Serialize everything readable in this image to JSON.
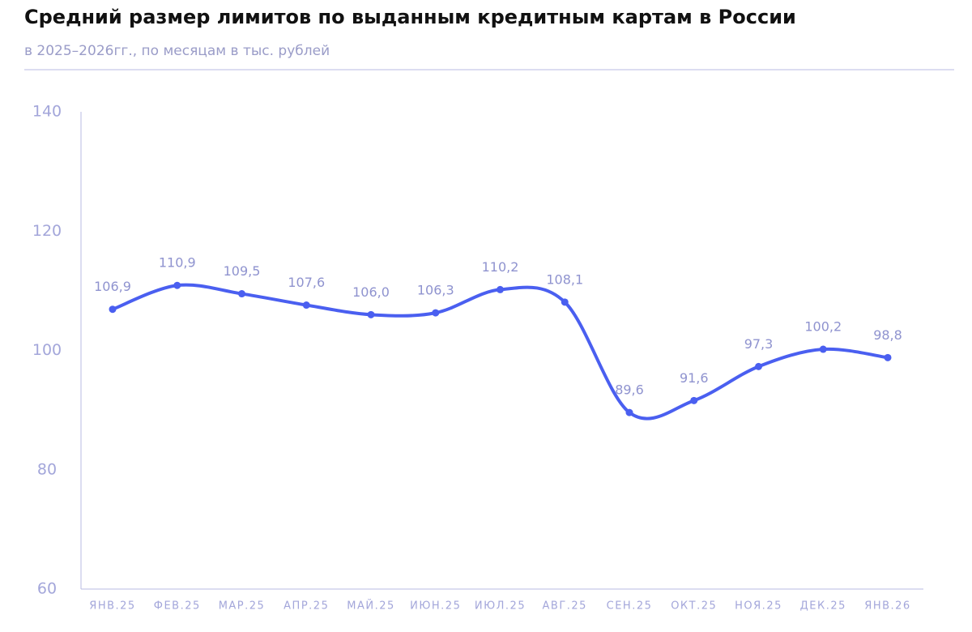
{
  "chart_data": {
    "type": "line",
    "title": "Средний размер лимитов по выданным кредитным картам в России",
    "subtitle": "в 2025–2026гг., по месяцам в тыс. рублей",
    "categories": [
      "ЯНВ.25",
      "ФЕВ.25",
      "МАР.25",
      "АПР.25",
      "МАЙ.25",
      "ИЮН.25",
      "ИЮЛ.25",
      "АВГ.25",
      "СЕН.25",
      "ОКТ.25",
      "НОЯ.25",
      "ДЕК.25",
      "ЯНВ.26"
    ],
    "values": [
      106.9,
      110.9,
      109.5,
      107.6,
      106.0,
      106.3,
      110.2,
      108.1,
      89.6,
      91.6,
      97.3,
      100.2,
      98.8
    ],
    "value_labels": [
      "106,9",
      "110,9",
      "109,5",
      "107,6",
      "106,0",
      "106,3",
      "110,2",
      "108,1",
      "89,6",
      "91,6",
      "97,3",
      "100,2",
      "98,8"
    ],
    "color": "#4a5ff0",
    "ylim": [
      60,
      140
    ],
    "yticks": [
      60,
      80,
      100,
      120,
      140
    ],
    "grid": false
  }
}
